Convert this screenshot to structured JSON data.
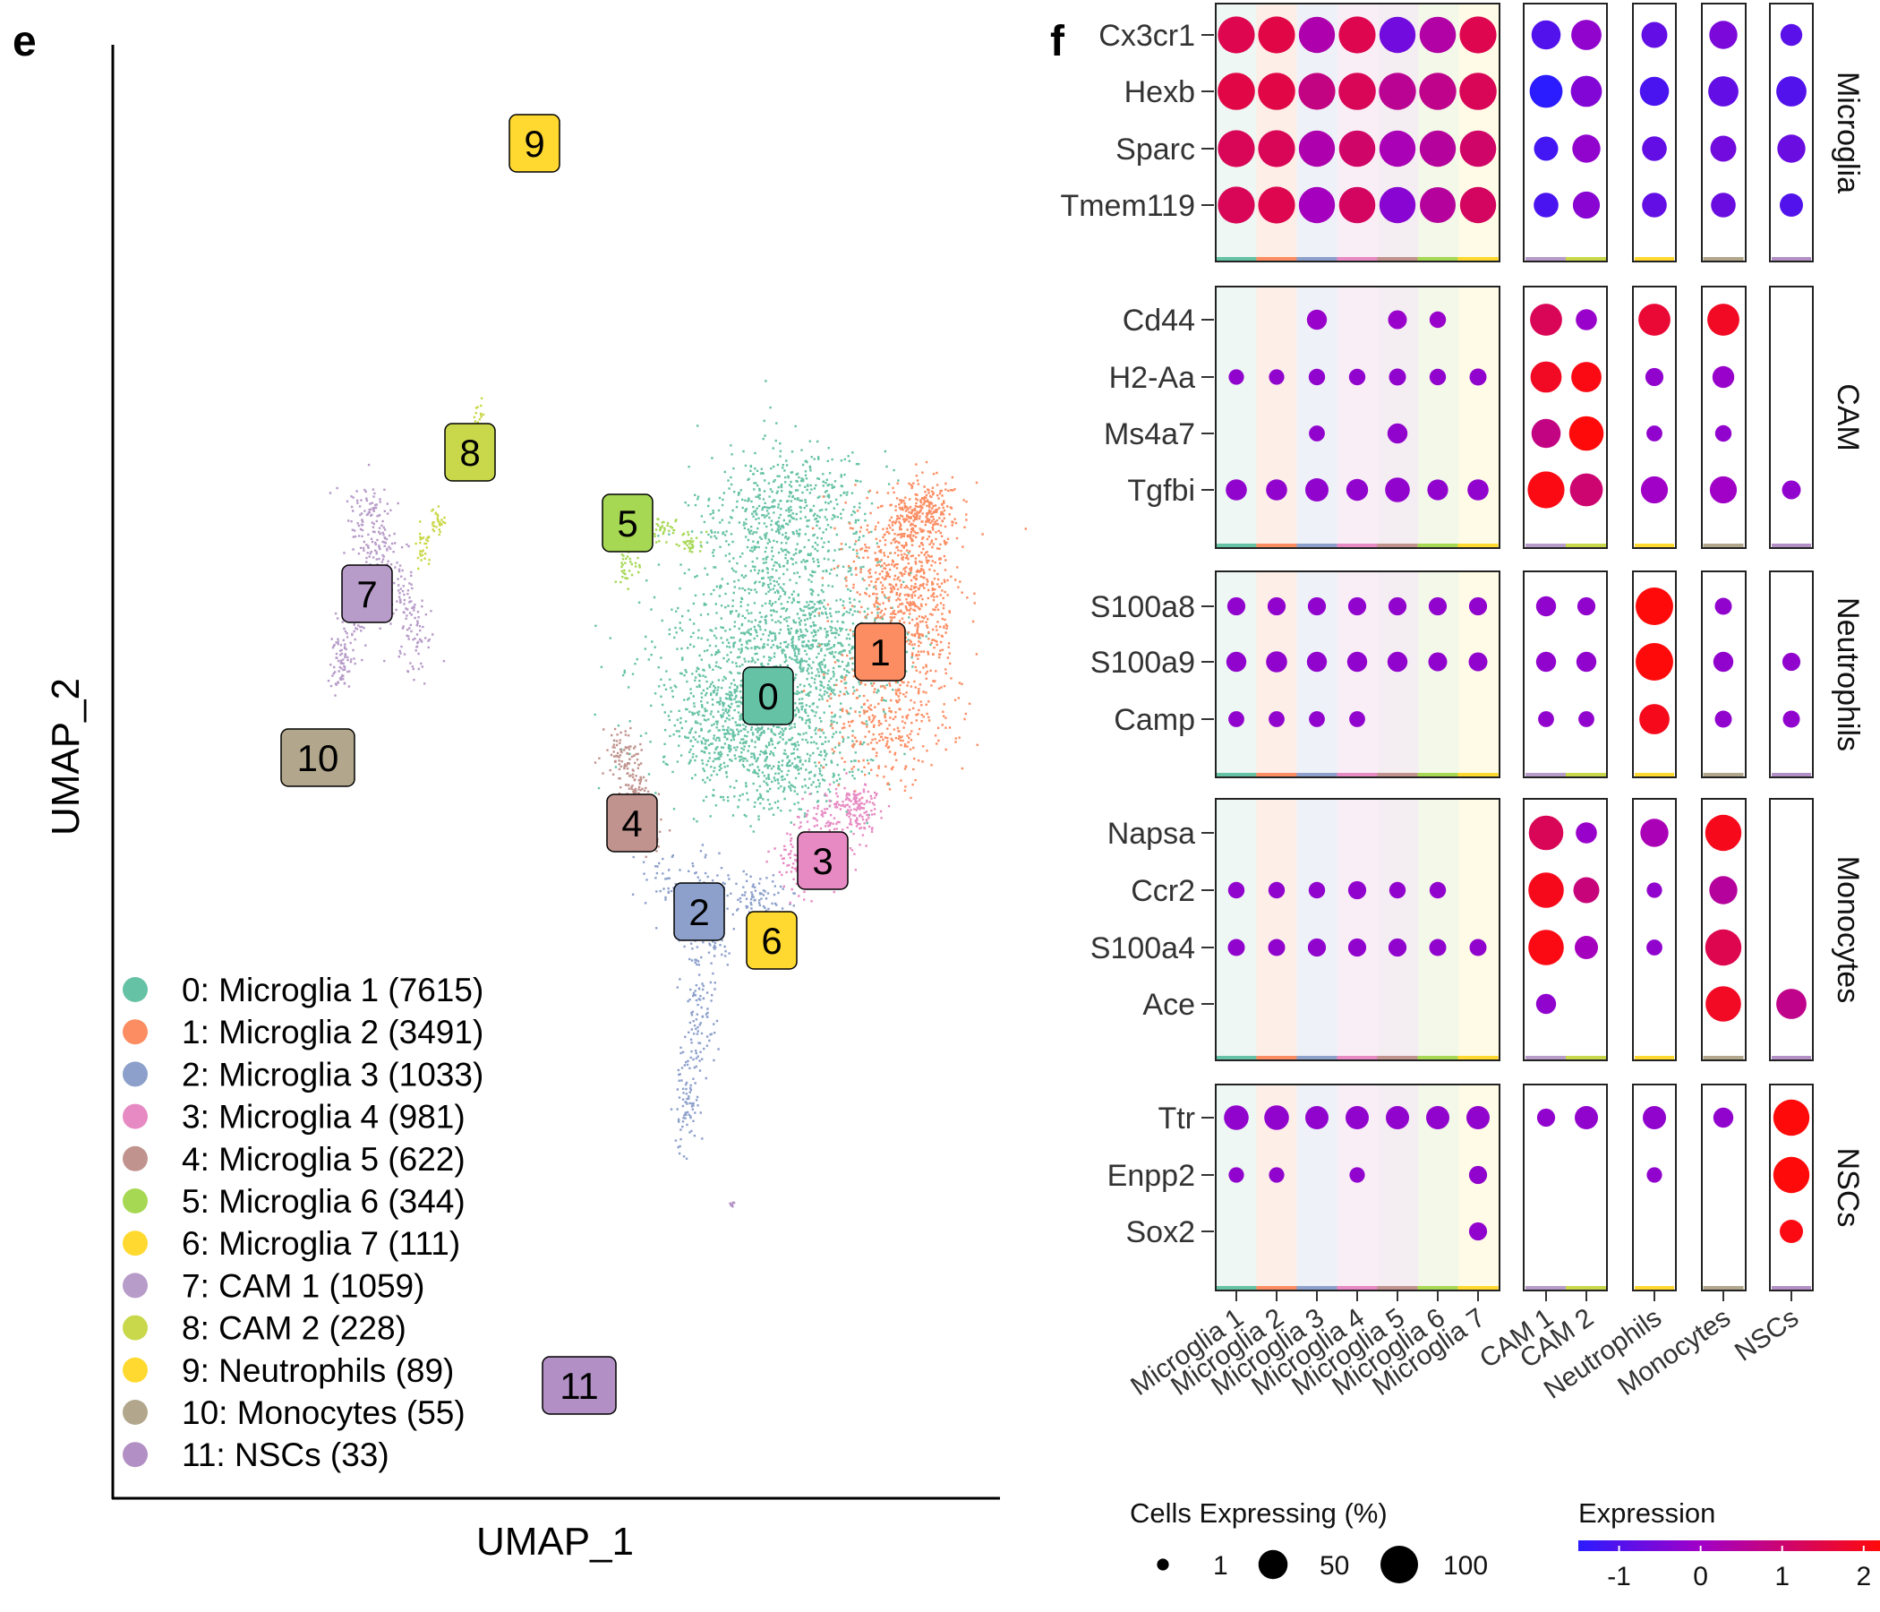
{
  "panels": {
    "e": "e",
    "f": "f"
  },
  "chart_data": [
    {
      "type": "scatter",
      "xlabel": "UMAP_1",
      "ylabel": "UMAP_2",
      "grid": false,
      "legend_placement": "bottom-left",
      "clusters": [
        {
          "id": "0",
          "legend": "0: Microglia 1 (7615)",
          "color": "#66C2A5"
        },
        {
          "id": "1",
          "legend": "1: Microglia 2 (3491)",
          "color": "#FC8D62"
        },
        {
          "id": "2",
          "legend": "2: Microglia 3 (1033)",
          "color": "#8DA0CB"
        },
        {
          "id": "3",
          "legend": "3: Microglia 4 (981)",
          "color": "#E78AC3"
        },
        {
          "id": "4",
          "legend": "4: Microglia 5 (622)",
          "color": "#C0938E"
        },
        {
          "id": "5",
          "legend": "5: Microglia 6 (344)",
          "color": "#A6D854"
        },
        {
          "id": "6",
          "legend": "6: Microglia 7 (111)",
          "color": "#FFD92F"
        },
        {
          "id": "7",
          "legend": "7: CAM 1 (1059)",
          "color": "#B79BC8"
        },
        {
          "id": "8",
          "legend": "8: CAM 2 (228)",
          "color": "#C9D84A"
        },
        {
          "id": "9",
          "legend": "9: Neutrophils (89)",
          "color": "#FFD92F"
        },
        {
          "id": "10",
          "legend": "10: Monocytes (55)",
          "color": "#B2A78C"
        },
        {
          "id": "11",
          "legend": "11: NSCs (33)",
          "color": "#B28FC4"
        }
      ]
    },
    {
      "type": "dot",
      "size_legend_title": "Cells Expressing (%)",
      "size_legend": [
        "1",
        "50",
        "100"
      ],
      "color_legend_title": "Expression",
      "color_legend_ticks": [
        "-1",
        "0",
        "1",
        "2"
      ],
      "color_range": [
        -1.5,
        2.2
      ],
      "colors": {
        "low": "#2B1BFF",
        "mid": "#A100C7",
        "high": "#FF0A0A"
      },
      "column_groups": [
        {
          "columns": [
            "Microglia 1",
            "Microglia 2",
            "Microglia 3",
            "Microglia 4",
            "Microglia 5",
            "Microglia 6",
            "Microglia 7"
          ],
          "bar_colors": [
            "#66C2A5",
            "#FC8D62",
            "#8DA0CB",
            "#E78AC3",
            "#C0938E",
            "#A6D854",
            "#FFD92F"
          ]
        },
        {
          "columns": [
            "CAM 1",
            "CAM 2"
          ],
          "bar_colors": [
            "#B79BC8",
            "#C9D84A"
          ]
        },
        {
          "columns": [
            "Neutrophils"
          ],
          "bar_colors": [
            "#FFD92F"
          ]
        },
        {
          "columns": [
            "Monocytes"
          ],
          "bar_colors": [
            "#B2A78C"
          ]
        },
        {
          "columns": [
            "NSCs"
          ],
          "bar_colors": [
            "#B28FC4"
          ]
        }
      ],
      "row_groups": [
        {
          "label": "Microglia",
          "genes": [
            {
              "gene": "Cx3cr1",
              "pct": [
                95,
                95,
                90,
                95,
                90,
                92,
                95,
                50,
                55,
                35,
                45,
                20
              ],
              "expr": [
                1.4,
                1.5,
                0.3,
                1.4,
                -0.6,
                0.4,
                1.4,
                -1.0,
                -0.2,
                -0.8,
                -0.5,
                -0.9
              ]
            },
            {
              "gene": "Hexb",
              "pct": [
                98,
                98,
                95,
                98,
                96,
                96,
                98,
                70,
                60,
                50,
                55,
                55
              ],
              "expr": [
                1.5,
                1.5,
                0.8,
                1.3,
                0.6,
                0.7,
                1.3,
                -1.5,
                -0.4,
                -1.1,
                -0.8,
                -1.0
              ]
            },
            {
              "gene": "Sparc",
              "pct": [
                95,
                95,
                90,
                92,
                90,
                90,
                92,
                28,
                45,
                30,
                35,
                45
              ],
              "expr": [
                1.3,
                1.3,
                0.3,
                1.1,
                0.2,
                0.5,
                1.1,
                -1.2,
                -0.2,
                -0.8,
                -0.6,
                -0.7
              ]
            },
            {
              "gene": "Tmem119",
              "pct": [
                95,
                95,
                90,
                92,
                90,
                88,
                90,
                30,
                40,
                30,
                30,
                25
              ],
              "expr": [
                1.3,
                1.4,
                0.1,
                1.2,
                -0.3,
                0.5,
                1.2,
                -1.1,
                -0.3,
                -0.8,
                -0.7,
                -1.0
              ]
            }
          ]
        },
        {
          "label": "CAM",
          "genes": [
            {
              "gene": "Cd44",
              "pct": [
                0,
                0,
                15,
                0,
                12,
                7,
                0,
                65,
                18,
                65,
                65,
                0
              ],
              "expr": [
                0,
                0,
                -0.1,
                0,
                -0.1,
                -0.1,
                0,
                1.3,
                -0.1,
                1.7,
                1.9,
                0
              ]
            },
            {
              "gene": "H2-Aa",
              "pct": [
                5,
                5,
                7,
                7,
                8,
                7,
                8,
                60,
                55,
                10,
                20,
                0
              ],
              "expr": [
                -0.2,
                -0.2,
                -0.2,
                -0.2,
                -0.2,
                -0.2,
                -0.2,
                1.9,
                2.1,
                -0.2,
                -0.1,
                0
              ]
            },
            {
              "gene": "Ms4a7",
              "pct": [
                0,
                0,
                6,
                0,
                15,
                0,
                0,
                50,
                80,
                6,
                7,
                0
              ],
              "expr": [
                0,
                0,
                -0.2,
                0,
                -0.2,
                0,
                0,
                0.8,
                2.2,
                -0.2,
                -0.2,
                0
              ]
            },
            {
              "gene": "Tgfbi",
              "pct": [
                18,
                18,
                25,
                20,
                30,
                17,
                18,
                95,
                70,
                40,
                40,
                12
              ],
              "expr": [
                -0.2,
                -0.2,
                -0.2,
                -0.2,
                -0.2,
                -0.2,
                -0.2,
                2.1,
                1.0,
                0.0,
                0.0,
                -0.2
              ]
            }
          ]
        },
        {
          "label": "Neutrophils",
          "genes": [
            {
              "gene": "S100a8",
              "pct": [
                10,
                10,
                10,
                10,
                10,
                10,
                10,
                15,
                10,
                100,
                8,
                0
              ],
              "expr": [
                -0.2,
                -0.2,
                -0.2,
                -0.2,
                -0.2,
                -0.2,
                -0.2,
                -0.2,
                -0.2,
                2.2,
                -0.2,
                0
              ]
            },
            {
              "gene": "S100a9",
              "pct": [
                15,
                18,
                15,
                15,
                15,
                12,
                12,
                15,
                15,
                100,
                15,
                10
              ],
              "expr": [
                -0.2,
                -0.2,
                -0.2,
                -0.2,
                -0.2,
                -0.2,
                -0.2,
                -0.2,
                -0.2,
                2.2,
                -0.2,
                -0.2
              ]
            },
            {
              "gene": "Camp",
              "pct": [
                6,
                6,
                6,
                6,
                0,
                0,
                0,
                6,
                6,
                55,
                8,
                8
              ],
              "expr": [
                -0.2,
                -0.2,
                -0.2,
                -0.2,
                0,
                0,
                0,
                -0.2,
                -0.2,
                2.0,
                -0.2,
                -0.2
              ]
            }
          ]
        },
        {
          "label": "Monocytes",
          "genes": [
            {
              "gene": "Napsa",
              "pct": [
                0,
                0,
                0,
                0,
                0,
                0,
                0,
                80,
                18,
                45,
                90,
                0
              ],
              "expr": [
                0,
                0,
                0,
                0,
                0,
                0,
                0,
                1.3,
                -0.1,
                0.2,
                2.0,
                0
              ]
            },
            {
              "gene": "Ccr2",
              "pct": [
                7,
                7,
                7,
                10,
                7,
                7,
                0,
                85,
                35,
                5,
                45,
                0
              ],
              "expr": [
                -0.2,
                -0.2,
                -0.2,
                -0.2,
                -0.2,
                -0.2,
                0,
                2.0,
                0.9,
                -0.2,
                0.5,
                0
              ]
            },
            {
              "gene": "S100a4",
              "pct": [
                8,
                8,
                10,
                10,
                10,
                8,
                8,
                85,
                25,
                6,
                90,
                0
              ],
              "expr": [
                -0.2,
                -0.2,
                -0.2,
                -0.2,
                -0.2,
                -0.2,
                -0.2,
                2.1,
                0.1,
                -0.2,
                1.4,
                0
              ]
            },
            {
              "gene": "Ace",
              "pct": [
                0,
                0,
                0,
                0,
                0,
                0,
                0,
                15,
                0,
                0,
                85,
                55
              ],
              "expr": [
                0,
                0,
                0,
                0,
                0,
                0,
                0,
                -0.2,
                0,
                0,
                1.9,
                0.7
              ]
            }
          ]
        },
        {
          "label": "NSCs",
          "genes": [
            {
              "gene": "Ttr",
              "pct": [
                30,
                30,
                25,
                25,
                25,
                25,
                25,
                10,
                25,
                25,
                15,
                90
              ],
              "expr": [
                -0.2,
                -0.2,
                -0.2,
                -0.2,
                -0.2,
                -0.2,
                -0.2,
                -0.2,
                -0.2,
                -0.2,
                -0.2,
                2.2
              ]
            },
            {
              "gene": "Enpp2",
              "pct": [
                5,
                5,
                0,
                5,
                0,
                0,
                10,
                0,
                0,
                5,
                0,
                90
              ],
              "expr": [
                -0.2,
                -0.2,
                0,
                -0.2,
                0,
                0,
                -0.2,
                0,
                0,
                -0.2,
                0,
                2.2
              ]
            },
            {
              "gene": "Sox2",
              "pct": [
                0,
                0,
                0,
                0,
                0,
                0,
                10,
                0,
                0,
                0,
                0,
                25
              ],
              "expr": [
                0,
                0,
                0,
                0,
                0,
                0,
                -0.2,
                0,
                0,
                0,
                0,
                2.1
              ]
            }
          ]
        }
      ]
    }
  ]
}
